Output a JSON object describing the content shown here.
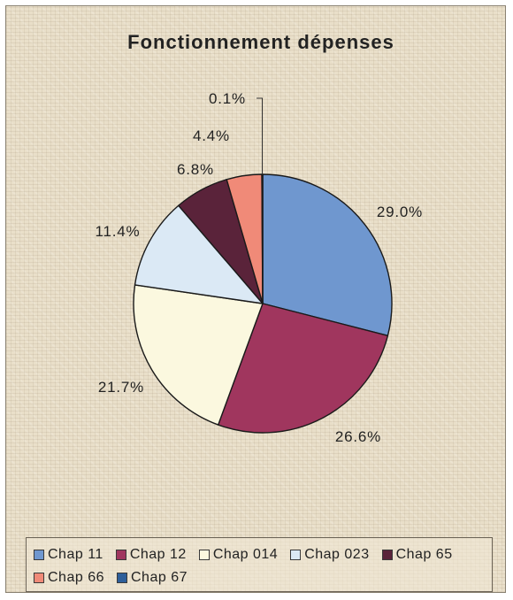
{
  "chart_data": {
    "type": "pie",
    "title": "Fonctionnement dépenses",
    "slices": [
      {
        "label": "Chap 11",
        "value": 29.0,
        "display": "29.0%",
        "color": "#6f97cf"
      },
      {
        "label": "Chap 12",
        "value": 26.6,
        "display": "26.6%",
        "color": "#a0365e"
      },
      {
        "label": "Chap 014",
        "value": 21.7,
        "display": "21.7%",
        "color": "#fbf8df"
      },
      {
        "label": "Chap 023",
        "value": 11.4,
        "display": "11.4%",
        "color": "#dbe9f5"
      },
      {
        "label": "Chap 65",
        "value": 6.8,
        "display": "6.8%",
        "color": "#5a233a"
      },
      {
        "label": "Chap 66",
        "value": 4.4,
        "display": "4.4%",
        "color": "#f08a78"
      },
      {
        "label": "Chap 67",
        "value": 0.1,
        "display": "0.1%",
        "color": "#2e5f9a"
      }
    ],
    "legend_position": "bottom"
  }
}
